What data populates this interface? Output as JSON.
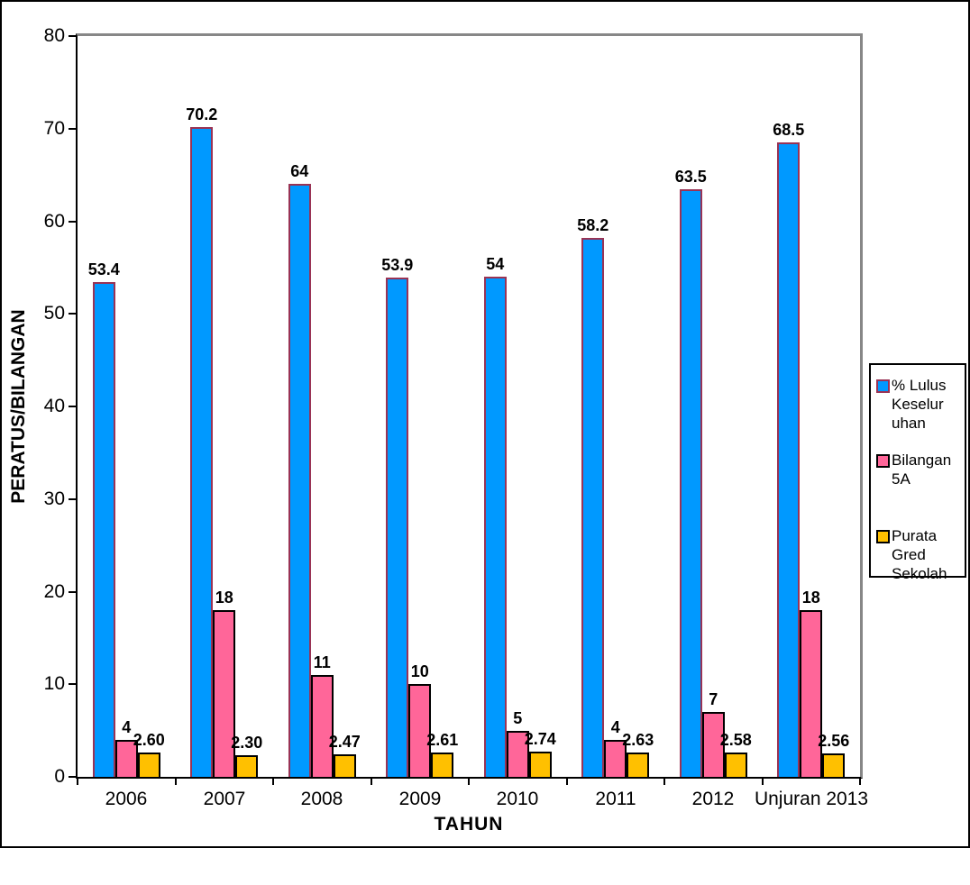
{
  "chart_data": {
    "type": "bar",
    "title": "",
    "xlabel": "TAHUN",
    "ylabel": "PERATUS/BILANGAN",
    "ylim": [
      0,
      80
    ],
    "ytick_labels": [
      "0",
      "10",
      "20",
      "30",
      "40",
      "50",
      "60",
      "70",
      "80"
    ],
    "grid": false,
    "legend_position": "right",
    "categories": [
      "2006",
      "2007",
      "2008",
      "2009",
      "2010",
      "2011",
      "2012",
      "Unjuran 2013"
    ],
    "series": [
      {
        "name": "% Lulus Keseluruhan",
        "legend_lines": [
          "% Lulus",
          "Keselur",
          "uhan"
        ],
        "color": "#0099FF",
        "border_color": "#993355",
        "values": [
          53.4,
          70.2,
          64,
          53.9,
          54,
          58.2,
          63.5,
          68.5
        ],
        "labels": [
          "53.4",
          "70.2",
          "64",
          "53.9",
          "54",
          "58.2",
          "63.5",
          "68.5"
        ]
      },
      {
        "name": "Bilangan 5A",
        "legend_lines": [
          "Bilangan",
          "5A"
        ],
        "color": "#FF6699",
        "border_color": "#000000",
        "values": [
          4,
          18,
          11,
          10,
          5,
          4,
          7,
          18
        ],
        "labels": [
          "4",
          "18",
          "11",
          "10",
          "5",
          "4",
          "7",
          "18"
        ]
      },
      {
        "name": "Purata Gred Sekolah",
        "legend_lines": [
          "Purata",
          "Gred",
          "Sekolah"
        ],
        "color": "#FFC000",
        "border_color": "#000000",
        "values": [
          2.6,
          2.3,
          2.47,
          2.61,
          2.74,
          2.63,
          2.58,
          2.56
        ],
        "labels": [
          "2.60",
          "2.30",
          "2.47",
          "2.61",
          "2.74",
          "2.63",
          "2.58",
          "2.56"
        ]
      }
    ]
  }
}
